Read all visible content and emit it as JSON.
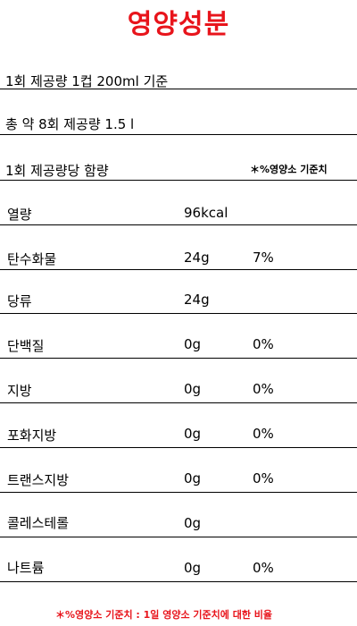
{
  "title": "영양성분",
  "serving_size": "1회 제공량 1컵 200ml 기준",
  "servings_total": "총 약 8회 제공량 1.5 l",
  "per_serving_header": "1회 제공량당 함량",
  "dv_header": "＊%영양소 기준치",
  "nutrients": [
    {
      "label": "열량",
      "amount": "96kcal",
      "dv": ""
    },
    {
      "label": "탄수화물",
      "amount": "24g",
      "dv": "7%"
    },
    {
      "label": "당류",
      "amount": "24g",
      "dv": ""
    },
    {
      "label": "단백질",
      "amount": "0g",
      "dv": "0%"
    },
    {
      "label": "지방",
      "amount": "0g",
      "dv": "0%"
    },
    {
      "label": "포화지방",
      "amount": "0g",
      "dv": "0%"
    },
    {
      "label": "트랜스지방",
      "amount": "0g",
      "dv": "0%"
    },
    {
      "label": "콜레스테롤",
      "amount": "0g",
      "dv": ""
    },
    {
      "label": "나트륨",
      "amount": "0g",
      "dv": "0%"
    }
  ],
  "footnote": "＊%영양소 기준치 : 1일 영양소 기준치에 대한 비율",
  "colors": {
    "accent_red": "#e8141b",
    "text": "#000000",
    "background": "#ffffff"
  }
}
